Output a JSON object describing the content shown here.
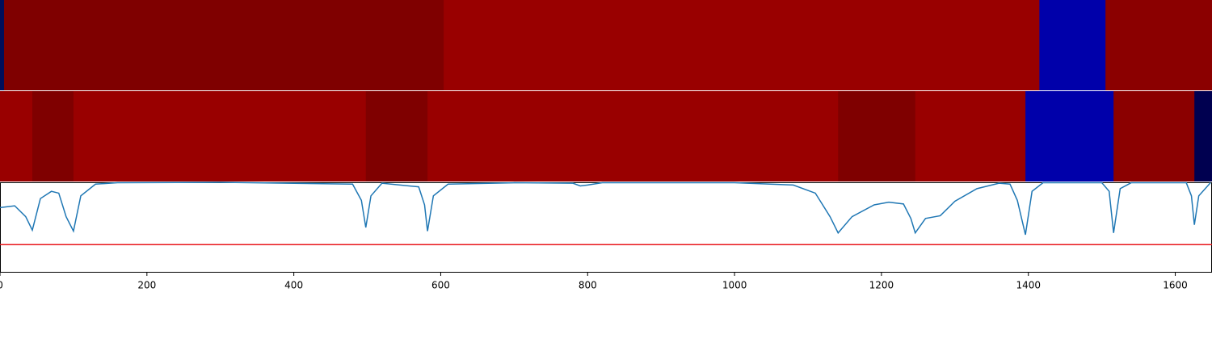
{
  "chart_data": [
    {
      "type": "segments",
      "xlim": [
        0,
        1650
      ],
      "segments": [
        {
          "start": 0,
          "end": 5.5,
          "color": "#000f5a"
        },
        {
          "start": 5.5,
          "end": 604,
          "color": "#7f0000"
        },
        {
          "start": 604,
          "end": 1415,
          "color": "#990000"
        },
        {
          "start": 1415,
          "end": 1505,
          "color": "#0000aa"
        },
        {
          "start": 1505,
          "end": 1650,
          "color": "#8b0000"
        }
      ]
    },
    {
      "type": "segments",
      "xlim": [
        0,
        1650
      ],
      "segments": [
        {
          "start": 0,
          "end": 44,
          "color": "#990000"
        },
        {
          "start": 44,
          "end": 100,
          "color": "#7f0000"
        },
        {
          "start": 100,
          "end": 498,
          "color": "#990000"
        },
        {
          "start": 498,
          "end": 582,
          "color": "#7f0000"
        },
        {
          "start": 582,
          "end": 1141,
          "color": "#990000"
        },
        {
          "start": 1141,
          "end": 1246,
          "color": "#7f0000"
        },
        {
          "start": 1246,
          "end": 1396,
          "color": "#990000"
        },
        {
          "start": 1396,
          "end": 1516,
          "color": "#0000aa"
        },
        {
          "start": 1516,
          "end": 1626,
          "color": "#8b0000"
        },
        {
          "start": 1626,
          "end": 1650,
          "color": "#000050"
        }
      ]
    },
    {
      "type": "line",
      "xlim": [
        0,
        1650
      ],
      "ylim": [
        0,
        1
      ],
      "xticks": [
        0,
        200,
        400,
        600,
        800,
        1000,
        1200,
        1400,
        1600
      ],
      "hline": 0.31,
      "hline_color": "#e8161a",
      "x": [
        0,
        20,
        35,
        44,
        55,
        70,
        80,
        90,
        100,
        110,
        130,
        160,
        300,
        480,
        492,
        498,
        505,
        520,
        570,
        578,
        582,
        590,
        610,
        700,
        780,
        790,
        800,
        820,
        1000,
        1080,
        1110,
        1130,
        1141,
        1160,
        1190,
        1210,
        1230,
        1240,
        1246,
        1260,
        1280,
        1300,
        1330,
        1360,
        1375,
        1385,
        1396,
        1405,
        1420,
        1500,
        1510,
        1516,
        1525,
        1540,
        1615,
        1622,
        1626,
        1632,
        1648
      ],
      "series": [
        {
          "color": "#1f77b4",
          "values": [
            0.72,
            0.74,
            0.62,
            0.47,
            0.82,
            0.9,
            0.88,
            0.62,
            0.46,
            0.85,
            0.98,
            0.995,
            1.0,
            0.98,
            0.8,
            0.5,
            0.85,
            0.99,
            0.95,
            0.75,
            0.46,
            0.85,
            0.98,
            0.995,
            0.99,
            0.96,
            0.97,
            0.995,
            0.995,
            0.97,
            0.88,
            0.62,
            0.44,
            0.62,
            0.75,
            0.78,
            0.76,
            0.6,
            0.44,
            0.6,
            0.63,
            0.79,
            0.93,
            0.99,
            0.98,
            0.8,
            0.42,
            0.9,
            0.995,
            0.995,
            0.9,
            0.44,
            0.93,
            0.995,
            0.995,
            0.85,
            0.53,
            0.85,
            0.995
          ]
        }
      ]
    }
  ]
}
